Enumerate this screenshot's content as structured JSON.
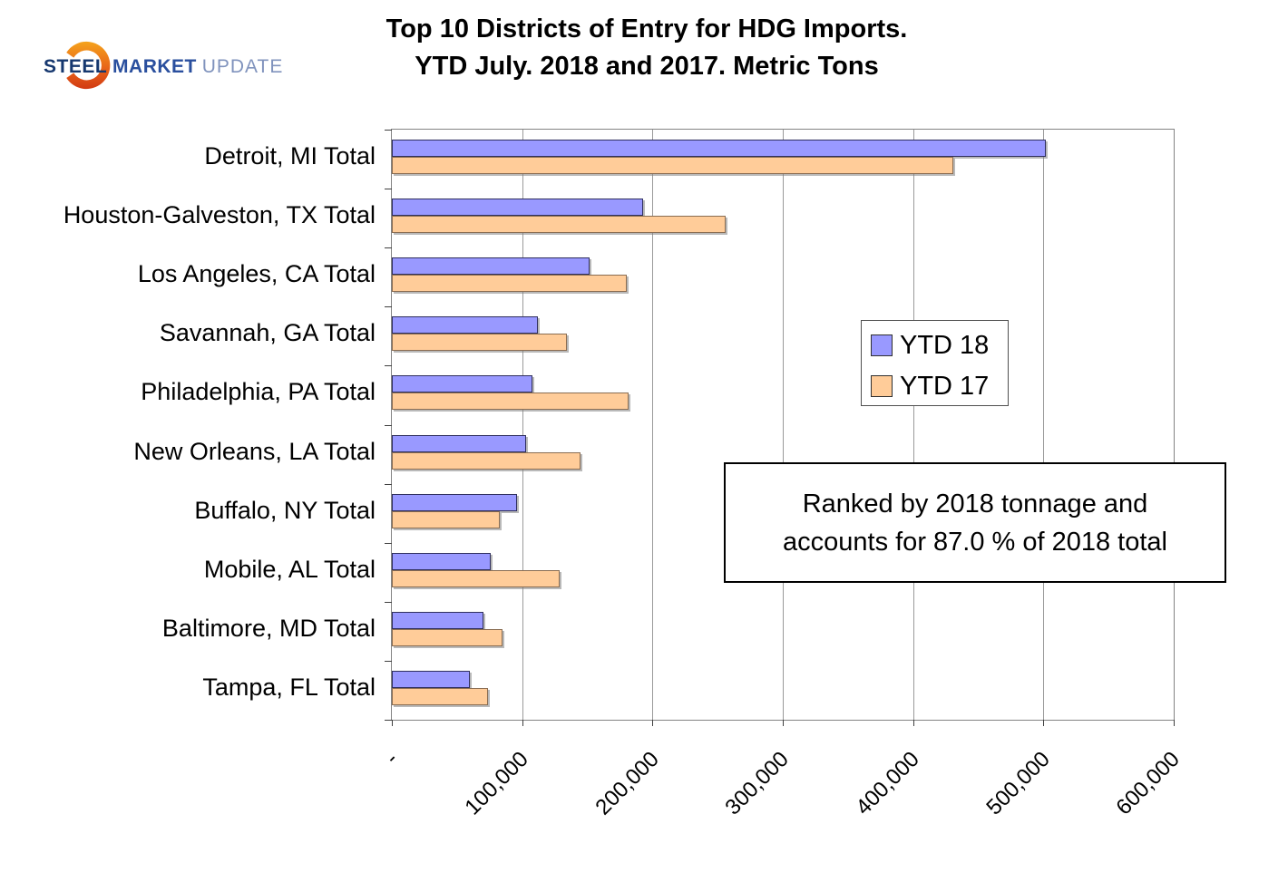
{
  "logo": {
    "steel": "STEEL",
    "market": "MARKET",
    "update": "UPDATE"
  },
  "title": {
    "line1": "Top 10 Districts of Entry for HDG Imports.",
    "line2": "YTD July. 2018 and 2017. Metric Tons"
  },
  "chart_data": {
    "type": "bar",
    "orientation": "horizontal",
    "title": "Top 10 Districts of Entry for HDG Imports. YTD July. 2018 and 2017. Metric Tons",
    "categories": [
      "Detroit, MI Total",
      "Houston-Galveston, TX Total",
      "Los Angeles, CA Total",
      "Savannah, GA Total",
      "Philadelphia, PA Total",
      "New Orleans, LA Total",
      "Buffalo, NY Total",
      "Mobile, AL Total",
      "Baltimore, MD Total",
      "Tampa, FL Total"
    ],
    "series": [
      {
        "name": "YTD 18",
        "color": "#9999FF",
        "values": [
          502000,
          193000,
          152000,
          112000,
          108000,
          103000,
          96000,
          76000,
          70000,
          60000
        ]
      },
      {
        "name": "YTD 17",
        "color": "#FFCC99",
        "values": [
          431000,
          256000,
          180000,
          134000,
          182000,
          145000,
          83000,
          129000,
          85000,
          74000
        ]
      }
    ],
    "x_axis": {
      "min": 0,
      "max": 600000,
      "tick_interval": 100000,
      "tick_labels": [
        "-",
        "100,000",
        "200,000",
        "300,000",
        "400,000",
        "500,000",
        "600,000"
      ]
    },
    "grid": "vertical",
    "legend_position": "right-middle"
  },
  "legend": {
    "items": [
      {
        "label": "YTD 18",
        "color": "#9999FF"
      },
      {
        "label": "YTD 17",
        "color": "#FFCC99"
      }
    ]
  },
  "annotation": {
    "line1": "Ranked by 2018 tonnage and",
    "line2": "accounts for 87.0 % of 2018 total"
  }
}
